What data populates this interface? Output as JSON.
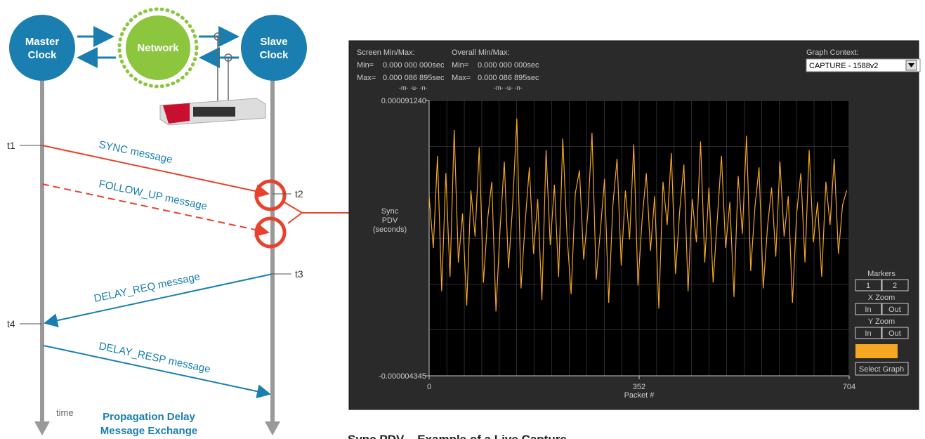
{
  "diagram": {
    "master": [
      "Master",
      "Clock"
    ],
    "network": "Network",
    "slave": [
      "Slave",
      "Clock"
    ],
    "t1": "t1",
    "t2": "t2",
    "t3": "t3",
    "t4": "t4",
    "sync": "SYNC message",
    "follow_up": "FOLLOW_UP message",
    "delay_req": "DELAY_REQ message",
    "delay_resp": "DELAY_RESP message",
    "time": "time",
    "caption": [
      "Propagation Delay",
      "Message Exchange"
    ]
  },
  "panel": {
    "screen": "Screen Min/Max:",
    "overall": "Overall Min/Max:",
    "min": "Min=",
    "max": "Max=",
    "screen_min": "0.000 000 000sec",
    "screen_max": "0.000 086 895sec",
    "overall_min": "0.000 000 000sec",
    "overall_max": "0.000 086 895sec",
    "units": "-m-  -u-  -n-",
    "context": "Graph Context:",
    "context_value": "CAPTURE - 1588v2",
    "markers": "Markers",
    "m1": "1",
    "m2": "2",
    "xzoom": "X Zoom",
    "yzoom": "Y Zoom",
    "in": "In",
    "out": "Out",
    "select": "Select Graph"
  },
  "chart_data": {
    "type": "line",
    "ylabel": [
      "Sync",
      "PDV",
      "(seconds)"
    ],
    "xlabel": "Packet #",
    "color": "#f5a623",
    "xlim": [
      0,
      704
    ],
    "xticks": [
      0,
      352,
      704
    ],
    "ylim": [
      -4.345e-06,
      9.124e-05
    ],
    "yticks": [
      {
        "value": -4.345e-06,
        "label": "-0.000004345"
      },
      {
        "value": 9.124e-05,
        "label": "0.000091240"
      }
    ],
    "x": [
      0,
      7,
      14,
      21,
      28,
      35,
      42,
      49,
      56,
      63,
      70,
      77,
      84,
      91,
      98,
      105,
      112,
      119,
      126,
      133,
      140,
      147,
      154,
      161,
      168,
      175,
      182,
      189,
      196,
      203,
      210,
      217,
      224,
      231,
      238,
      245,
      252,
      259,
      266,
      273,
      280,
      287,
      294,
      301,
      308,
      315,
      322,
      329,
      336,
      343,
      350,
      357,
      364,
      371,
      378,
      385,
      392,
      399,
      406,
      413,
      420,
      427,
      434,
      441,
      448,
      455,
      462,
      469,
      476,
      483,
      490,
      497,
      504,
      511,
      518,
      525,
      532,
      539,
      546,
      553,
      560,
      567,
      574,
      581,
      588,
      595,
      602,
      609,
      616,
      623,
      630,
      637,
      644,
      651,
      658,
      665,
      672,
      679,
      686,
      693,
      700
    ],
    "values": [
      5.8e-05,
      4e-05,
      7.2e-05,
      2.5e-05,
      6.6e-05,
      3e-05,
      8.1e-05,
      3.5e-05,
      5.2e-05,
      2e-05,
      6e-05,
      4.4e-05,
      7.5e-05,
      2.8e-05,
      5e-05,
      6.3e-05,
      1.8e-05,
      4.7e-05,
      7e-05,
      3.3e-05,
      5.5e-05,
      8.5e-05,
      2.6e-05,
      4.9e-05,
      6.8e-05,
      3.8e-05,
      5.7e-05,
      2.2e-05,
      7.4e-05,
      4.1e-05,
      6.2e-05,
      3e-05,
      7.8e-05,
      4.5e-05,
      2.4e-05,
      5.9e-05,
      6.7e-05,
      3.6e-05,
      5.2e-05,
      8e-05,
      2.9e-05,
      4.6e-05,
      6.4e-05,
      2.1e-05,
      5.5e-05,
      7.1e-05,
      3.4e-05,
      6e-05,
      4.3e-05,
      7.6e-05,
      2.7e-05,
      5e-05,
      6.6e-05,
      3.9e-05,
      5.8e-05,
      1.9e-05,
      6.3e-05,
      4.8e-05,
      7.3e-05,
      3.1e-05,
      5.3e-05,
      6.9e-05,
      2.5e-05,
      5.7e-05,
      4.2e-05,
      7.7e-05,
      3.5e-05,
      6.1e-05,
      2.8e-05,
      5e-05,
      7.2e-05,
      4e-05,
      5.6e-05,
      2.3e-05,
      6.5e-05,
      4.5e-05,
      7.9e-05,
      3.2e-05,
      5.4e-05,
      6.8e-05,
      2.6e-05,
      4.7e-05,
      6.1e-05,
      3.7e-05,
      7e-05,
      4.4e-05,
      5.8e-05,
      2.1e-05,
      5.2e-05,
      6.6e-05,
      3.5e-05,
      7.4e-05,
      4.2e-05,
      5.6e-05,
      3e-05,
      6.3e-05,
      4.8e-05,
      7.1e-05,
      3.8e-05,
      5.5e-05,
      6e-05
    ]
  },
  "caption": "Sync PDV – Example of a Live Capture"
}
